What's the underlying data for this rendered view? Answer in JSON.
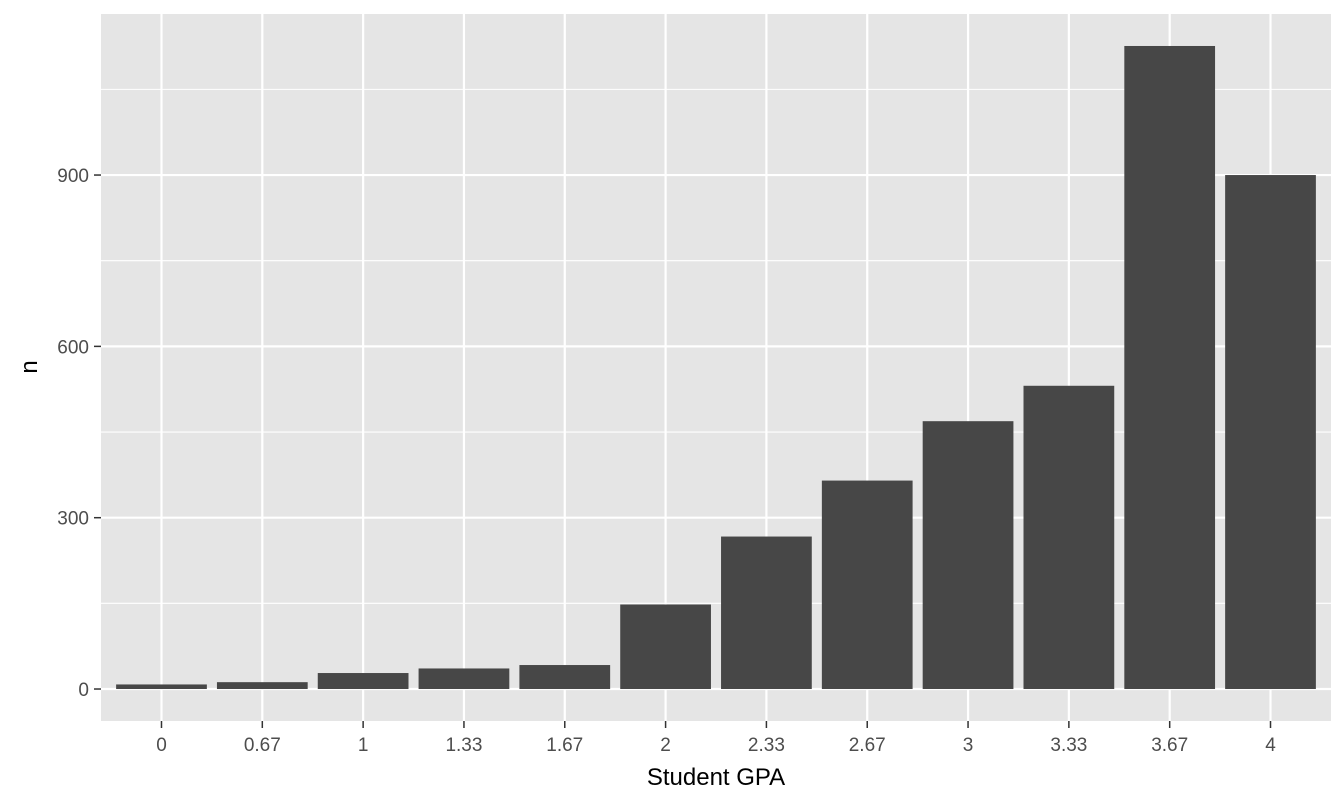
{
  "chart_data": {
    "type": "bar",
    "categories": [
      "0",
      "0.67",
      "1",
      "1.33",
      "1.67",
      "2",
      "2.33",
      "2.67",
      "3",
      "3.33",
      "3.67",
      "4"
    ],
    "values": [
      8,
      12,
      28,
      36,
      42,
      148,
      267,
      365,
      469,
      531,
      1126,
      900
    ],
    "xlabel": "Student GPA",
    "ylabel": "n",
    "ylim": [
      -56,
      1182
    ],
    "yticks": [
      0,
      300,
      600,
      900
    ],
    "grid": true,
    "bar_color": "#474747",
    "panel_color": "#e5e5e5",
    "grid_color": "#ffffff"
  }
}
